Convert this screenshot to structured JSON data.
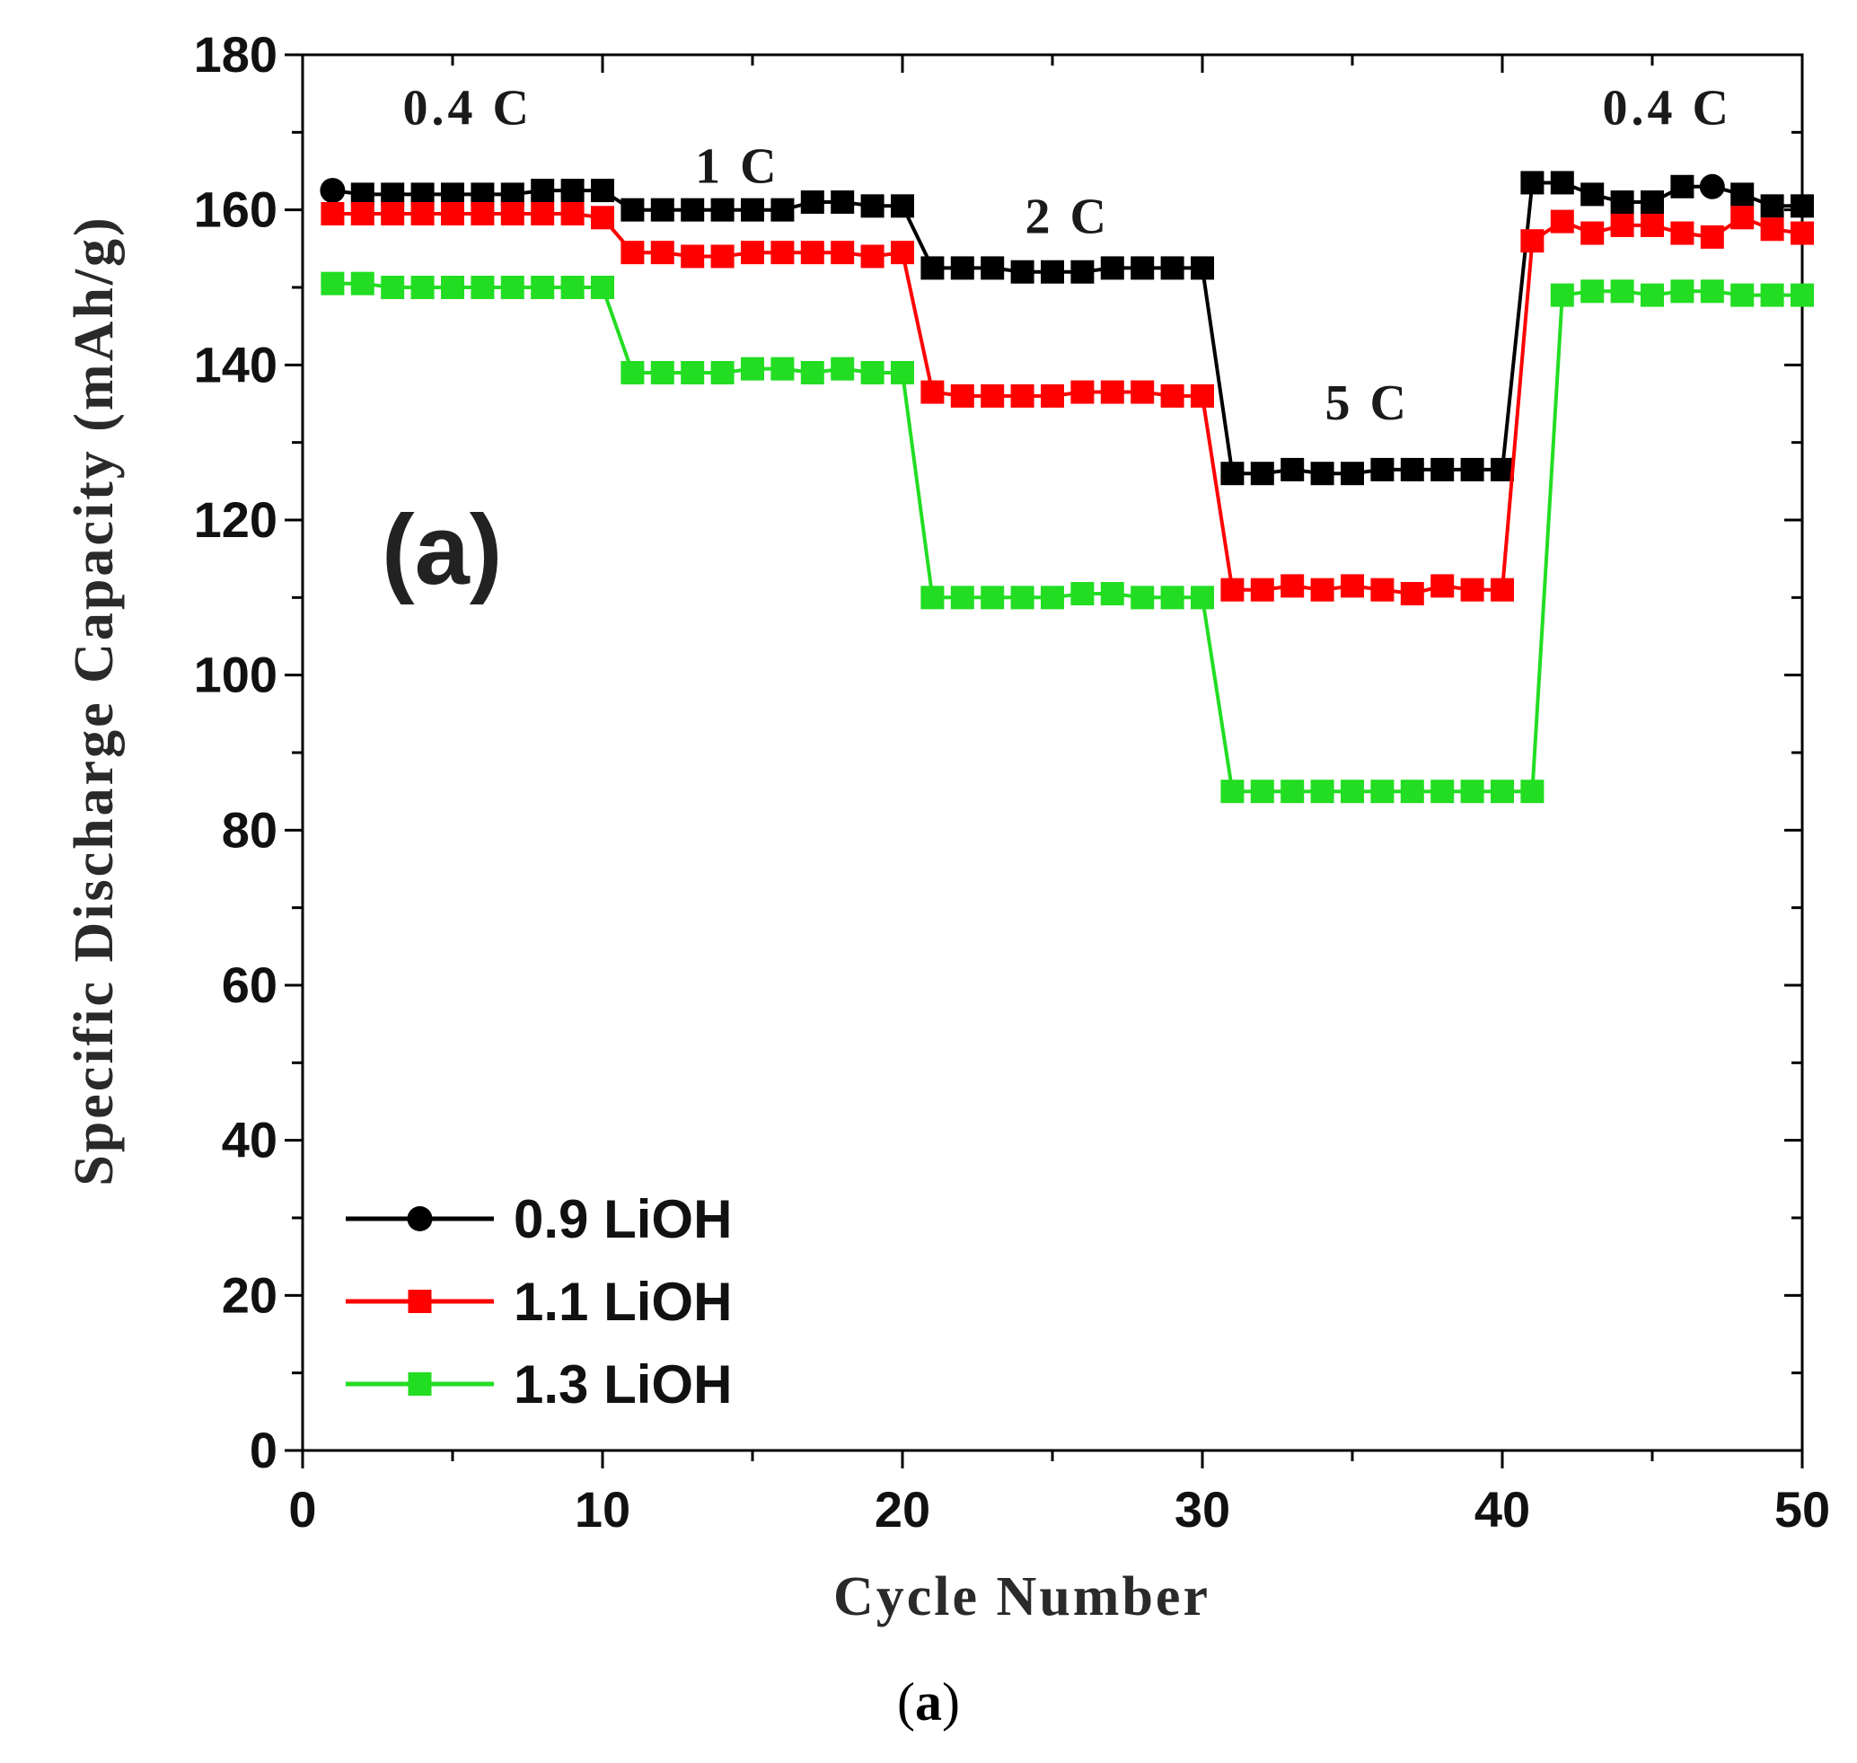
{
  "chart_data": {
    "type": "line",
    "xlabel": "Cycle Number",
    "ylabel": "Specific Discharge Capacity (mAh/g)",
    "xlim": [
      0,
      50
    ],
    "ylim": [
      0,
      180
    ],
    "xticks": [
      0,
      10,
      20,
      30,
      40,
      50
    ],
    "yticks": [
      0,
      20,
      40,
      60,
      80,
      100,
      120,
      140,
      160,
      180
    ],
    "x": [
      1,
      2,
      3,
      4,
      5,
      6,
      7,
      8,
      9,
      10,
      11,
      12,
      13,
      14,
      15,
      16,
      17,
      18,
      19,
      20,
      21,
      22,
      23,
      24,
      25,
      26,
      27,
      28,
      29,
      30,
      31,
      32,
      33,
      34,
      35,
      36,
      37,
      38,
      39,
      40,
      41,
      42,
      43,
      44,
      45,
      46,
      47,
      48,
      49,
      50
    ],
    "series": [
      {
        "name": "0.9 LiOH",
        "color": "#000000",
        "values": [
          162.5,
          162,
          162,
          162,
          162,
          162,
          162,
          162.5,
          162.5,
          162.5,
          160,
          160,
          160,
          160,
          160,
          160,
          161,
          161,
          160.5,
          160.5,
          152.5,
          152.5,
          152.5,
          152,
          152,
          152,
          152.5,
          152.5,
          152.5,
          152.5,
          126,
          126,
          126.5,
          126,
          126,
          126.5,
          126.5,
          126.5,
          126.5,
          126.5,
          163.5,
          163.5,
          162,
          161,
          161,
          163,
          163,
          162,
          160.5,
          160.5
        ]
      },
      {
        "name": "1.1 LiOH",
        "color": "#ff0000",
        "values": [
          159.5,
          159.5,
          159.5,
          159.5,
          159.5,
          159.5,
          159.5,
          159.5,
          159.5,
          159,
          154.5,
          154.5,
          154,
          154,
          154.5,
          154.5,
          154.5,
          154.5,
          154,
          154.5,
          136.5,
          136,
          136,
          136,
          136,
          136.5,
          136.5,
          136.5,
          136,
          136,
          111,
          111,
          111.5,
          111,
          111.5,
          111,
          110.5,
          111.5,
          111,
          111,
          156,
          158.5,
          157,
          158,
          158,
          157,
          156.5,
          159,
          157.5,
          157
        ]
      },
      {
        "name": "1.3 LiOH",
        "color": "#22dd22",
        "values": [
          150.5,
          150.5,
          150,
          150,
          150,
          150,
          150,
          150,
          150,
          150,
          139,
          139,
          139,
          139,
          139.5,
          139.5,
          139,
          139.5,
          139,
          139,
          110,
          110,
          110,
          110,
          110,
          110.5,
          110.5,
          110,
          110,
          110,
          85,
          85,
          85,
          85,
          85,
          85,
          85,
          85,
          85,
          85,
          85,
          149,
          149.5,
          149.5,
          149,
          149.5,
          149.5,
          149,
          149,
          149
        ]
      }
    ],
    "annotations": [
      {
        "text": "0.4 C",
        "x": 5.5,
        "y": 171
      },
      {
        "text": "1 C",
        "x": 14.5,
        "y": 163.5
      },
      {
        "text": "2 C",
        "x": 25.5,
        "y": 157
      },
      {
        "text": "5 C",
        "x": 35.5,
        "y": 133
      },
      {
        "text": "0.4 C",
        "x": 45.5,
        "y": 171
      }
    ],
    "panel_label": "(a)",
    "legend_position": "bottom-left"
  },
  "caption": {
    "open": "(",
    "letter": "a",
    "close": ")"
  }
}
